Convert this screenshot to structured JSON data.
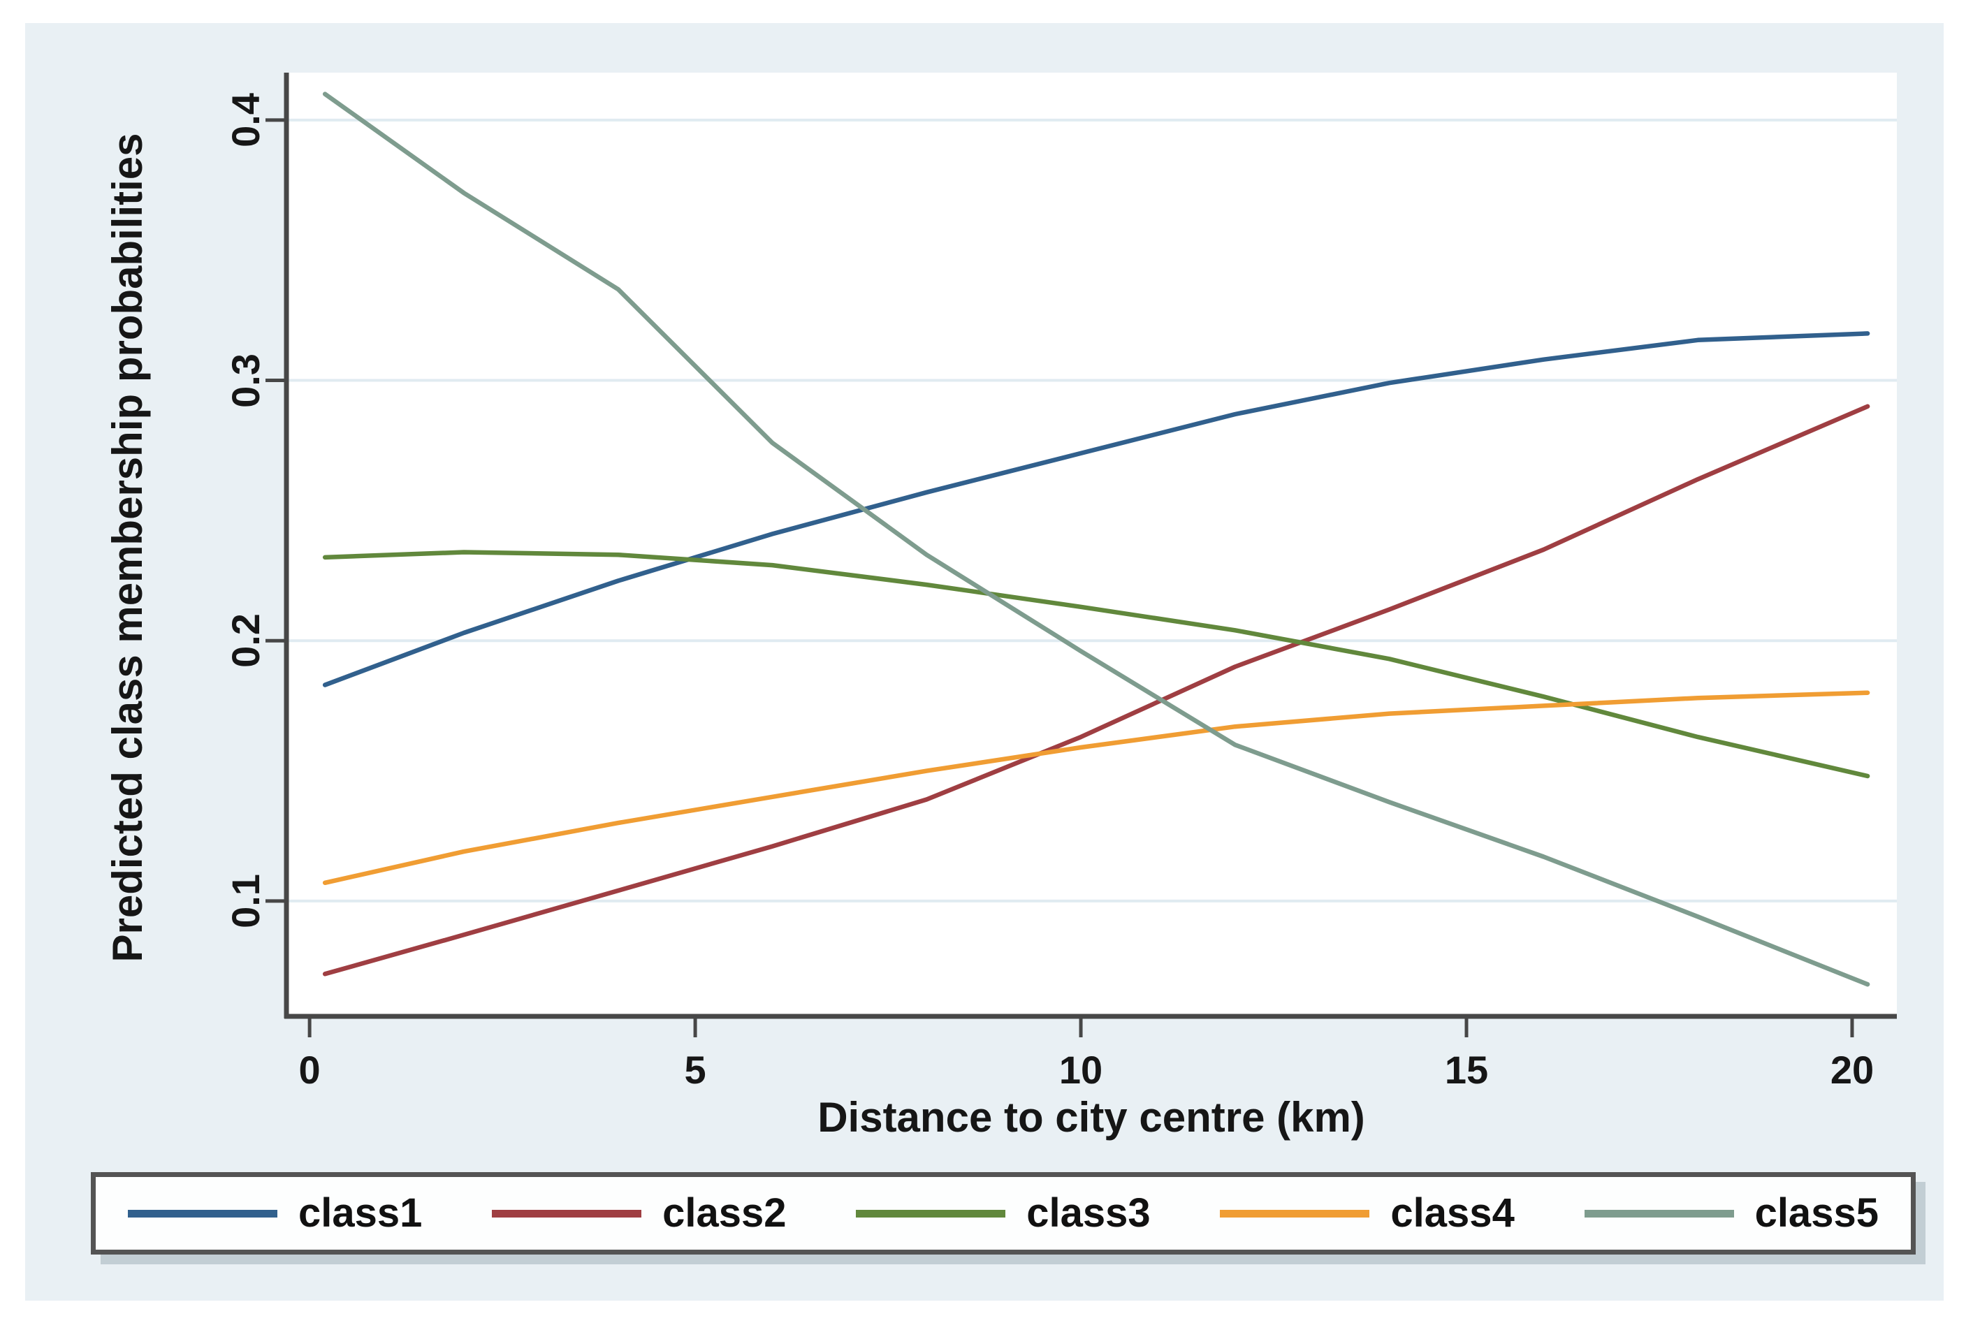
{
  "chart_data": {
    "type": "line",
    "title": "",
    "xlabel": "Distance to city centre (km)",
    "ylabel": "Predicted class membership probabilities",
    "x": [
      0.2,
      2,
      4,
      6,
      8,
      10,
      12,
      14,
      16,
      18,
      20.2
    ],
    "series": [
      {
        "name": "class1",
        "color": "#31608d",
        "values": [
          0.183,
          0.203,
          0.223,
          0.241,
          0.257,
          0.272,
          0.287,
          0.299,
          0.308,
          0.3155,
          0.318
        ]
      },
      {
        "name": "class2",
        "color": "#9f3e42",
        "values": [
          0.072,
          0.087,
          0.104,
          0.121,
          0.139,
          0.163,
          0.19,
          0.212,
          0.235,
          0.262,
          0.29
        ]
      },
      {
        "name": "class3",
        "color": "#61883c",
        "values": [
          0.232,
          0.234,
          0.233,
          0.229,
          0.2215,
          0.213,
          0.204,
          0.193,
          0.1785,
          0.163,
          0.148
        ]
      },
      {
        "name": "class4",
        "color": "#f09d33",
        "values": [
          0.107,
          0.119,
          0.13,
          0.14,
          0.15,
          0.159,
          0.167,
          0.172,
          0.175,
          0.178,
          0.18
        ]
      },
      {
        "name": "class5",
        "color": "#7e9c8e",
        "values": [
          0.41,
          0.372,
          0.335,
          0.276,
          0.233,
          0.196,
          0.16,
          0.138,
          0.117,
          0.094,
          0.068
        ]
      }
    ],
    "xticks": [
      0,
      5,
      10,
      15,
      20
    ],
    "xtick_labels": [
      "0",
      "5",
      "10",
      "15",
      "20"
    ],
    "yticks": [
      0.1,
      0.2,
      0.3,
      0.4
    ],
    "ytick_labels": [
      "0.1",
      "0.2",
      "0.3",
      "0.4"
    ],
    "xlim": [
      -0.3,
      20.58
    ],
    "ylim": [
      0.0557,
      0.4182
    ],
    "grid": "horizontal",
    "legend_position": "bottom",
    "colors": {
      "canvas_background": "#e9f0f4",
      "plot_background": "#ffffff",
      "gridline": "#e0ebf1",
      "axis_line": "#474747",
      "text": "#161616"
    }
  }
}
